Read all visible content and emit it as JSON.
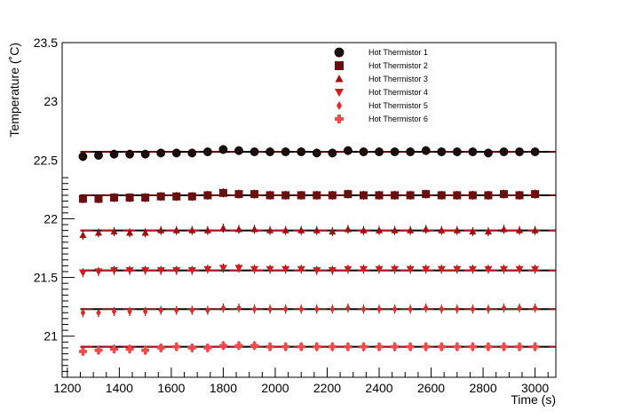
{
  "chart_data": {
    "type": "scatter",
    "title": "",
    "xlabel": "Time (s)",
    "ylabel": "Temperature (˚C)",
    "xlim": [
      1180,
      3080
    ],
    "ylim": [
      20.65,
      23.5
    ],
    "x_ticks": [
      "1200",
      "1400",
      "1600",
      "1800",
      "2000",
      "2200",
      "2400",
      "2600",
      "2800",
      "3000"
    ],
    "y_ticks": [
      "21",
      "21.5",
      "22",
      "22.5",
      "23",
      "23.5"
    ],
    "legend": "top-right",
    "grid": false,
    "x": [
      1260,
      1320,
      1380,
      1440,
      1500,
      1560,
      1620,
      1680,
      1740,
      1800,
      1860,
      1920,
      1980,
      2040,
      2100,
      2160,
      2220,
      2280,
      2340,
      2400,
      2460,
      2520,
      2580,
      2640,
      2700,
      2760,
      2820,
      2880,
      2940,
      3000
    ],
    "series": [
      {
        "name": "Hot Thermistor 1",
        "marker": "circle",
        "color": "#1f0d0d",
        "fit": 22.57,
        "values": [
          22.53,
          22.54,
          22.55,
          22.55,
          22.55,
          22.56,
          22.56,
          22.56,
          22.57,
          22.59,
          22.58,
          22.57,
          22.57,
          22.57,
          22.57,
          22.56,
          22.56,
          22.58,
          22.57,
          22.57,
          22.57,
          22.57,
          22.58,
          22.57,
          22.57,
          22.57,
          22.56,
          22.57,
          22.57,
          22.57
        ]
      },
      {
        "name": "Hot Thermistor 2",
        "marker": "square",
        "color": "#6b0e0e",
        "fit": 22.2,
        "values": [
          22.17,
          22.17,
          22.18,
          22.18,
          22.18,
          22.19,
          22.19,
          22.19,
          22.2,
          22.22,
          22.21,
          22.21,
          22.2,
          22.2,
          22.2,
          22.2,
          22.2,
          22.21,
          22.2,
          22.2,
          22.2,
          22.2,
          22.21,
          22.2,
          22.2,
          22.2,
          22.2,
          22.21,
          22.2,
          22.21
        ]
      },
      {
        "name": "Hot Thermistor 3",
        "marker": "triangle-up",
        "color": "#a50e0e",
        "fit": 21.9,
        "values": [
          21.86,
          21.88,
          21.89,
          21.88,
          21.88,
          21.9,
          21.9,
          21.9,
          21.9,
          21.92,
          21.91,
          21.91,
          21.9,
          21.9,
          21.9,
          21.9,
          21.89,
          21.91,
          21.9,
          21.9,
          21.9,
          21.9,
          21.91,
          21.9,
          21.9,
          21.89,
          21.89,
          21.91,
          21.9,
          21.9
        ]
      },
      {
        "name": "Hot Thermistor 4",
        "marker": "triangle-down",
        "color": "#d01c1c",
        "fit": 21.56,
        "values": [
          21.54,
          21.55,
          21.56,
          21.56,
          21.56,
          21.56,
          21.56,
          21.56,
          21.57,
          21.58,
          21.58,
          21.57,
          21.57,
          21.57,
          21.57,
          21.56,
          21.56,
          21.57,
          21.57,
          21.57,
          21.57,
          21.57,
          21.57,
          21.57,
          21.57,
          21.57,
          21.57,
          21.57,
          21.57,
          21.57
        ]
      },
      {
        "name": "Hot Thermistor 5",
        "marker": "diamond",
        "color": "#e22a2a",
        "fit": 21.23,
        "values": [
          21.2,
          21.2,
          21.21,
          21.21,
          21.21,
          21.22,
          21.22,
          21.22,
          21.22,
          21.24,
          21.24,
          21.23,
          21.23,
          21.23,
          21.23,
          21.23,
          21.23,
          21.24,
          21.23,
          21.23,
          21.23,
          21.23,
          21.24,
          21.23,
          21.23,
          21.23,
          21.23,
          21.24,
          21.24,
          21.24
        ]
      },
      {
        "name": "Hot Thermistor 6",
        "marker": "cross",
        "color": "#f24a4a",
        "fit": 20.91,
        "values": [
          20.87,
          20.88,
          20.89,
          20.89,
          20.88,
          20.9,
          20.91,
          20.9,
          20.9,
          20.92,
          20.92,
          20.92,
          20.91,
          20.91,
          20.91,
          20.91,
          20.91,
          20.91,
          20.91,
          20.91,
          20.91,
          20.91,
          20.91,
          20.91,
          20.91,
          20.91,
          20.91,
          20.91,
          20.91,
          20.91
        ]
      }
    ]
  }
}
